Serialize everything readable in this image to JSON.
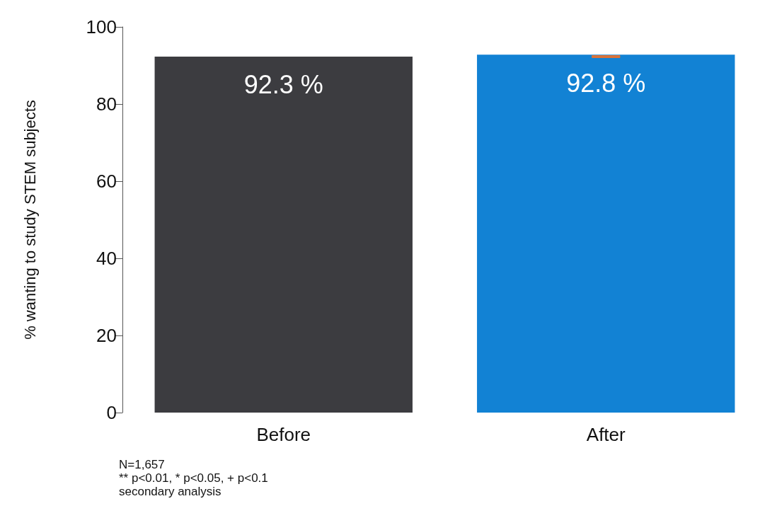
{
  "chart_data": {
    "type": "bar",
    "ylabel": "% wanting to study STEM subjects",
    "categories": [
      "Before",
      "After"
    ],
    "values": [
      92.3,
      92.8
    ],
    "colors": [
      "#3c3c40",
      "#1282d4"
    ],
    "errors": [
      null,
      [
        92.2,
        92.4
      ]
    ],
    "value_labels": [
      "92.3 %",
      "92.8 %"
    ],
    "ylim": [
      0,
      100
    ],
    "yticks": [
      0,
      20,
      40,
      60,
      80,
      100
    ],
    "grid": false,
    "annotations": [
      "N=1,657",
      "** p<0.01, * p<0.05, + p<0.1",
      "secondary analysis"
    ]
  }
}
